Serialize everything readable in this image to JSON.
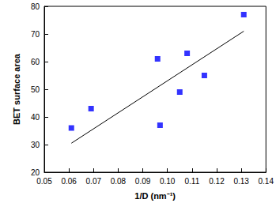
{
  "chart_data": {
    "type": "scatter",
    "xlabel": "1/D (nm⁻¹)",
    "ylabel": "BET surface area",
    "series": [
      {
        "type": "scatter",
        "color": "#0000ff",
        "marker": "square",
        "x": [
          0.061,
          0.069,
          0.096,
          0.097,
          0.105,
          0.108,
          0.115,
          0.131
        ],
        "values": [
          36,
          43,
          61,
          37,
          49,
          63,
          55,
          77
        ]
      },
      {
        "type": "line",
        "color": "#000000",
        "line_style": "solid",
        "x": [
          0.061,
          0.131
        ],
        "values": [
          30.5,
          71
        ]
      }
    ],
    "xlim": [
      0.05,
      0.14
    ],
    "xticks": [
      0.05,
      0.06,
      0.07,
      0.08,
      0.09,
      {
        "value": 0.1,
        "label": "0.10"
      },
      0.11,
      0.12,
      0.13,
      0.14
    ],
    "ylim": [
      20,
      80
    ],
    "yticks": [
      20,
      30,
      40,
      50,
      60,
      70,
      80
    ],
    "grid": false
  }
}
